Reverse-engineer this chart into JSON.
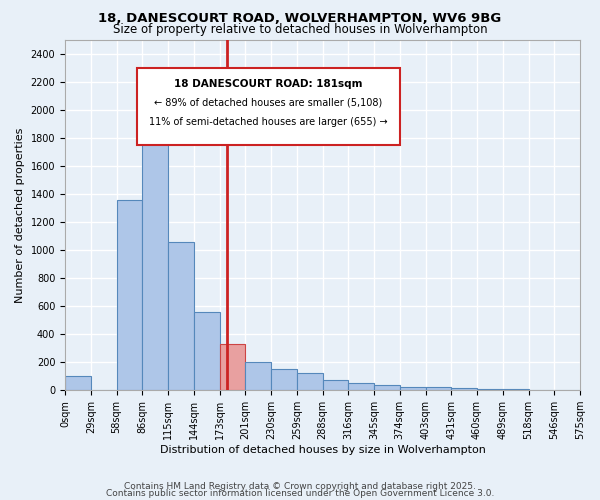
{
  "title1": "18, DANESCOURT ROAD, WOLVERHAMPTON, WV6 9BG",
  "title2": "Size of property relative to detached houses in Wolverhampton",
  "xlabel": "Distribution of detached houses by size in Wolverhampton",
  "ylabel": "Number of detached properties",
  "footer1": "Contains HM Land Registry data © Crown copyright and database right 2025.",
  "footer2": "Contains public sector information licensed under the Open Government Licence 3.0.",
  "bin_labels": [
    "0sqm",
    "29sqm",
    "58sqm",
    "86sqm",
    "115sqm",
    "144sqm",
    "173sqm",
    "201sqm",
    "230sqm",
    "259sqm",
    "288sqm",
    "316sqm",
    "345sqm",
    "374sqm",
    "403sqm",
    "431sqm",
    "460sqm",
    "489sqm",
    "518sqm",
    "546sqm",
    "575sqm"
  ],
  "bar_values": [
    100,
    0,
    1360,
    1900,
    1060,
    560,
    330,
    200,
    150,
    120,
    70,
    50,
    35,
    25,
    20,
    15,
    10,
    8,
    5,
    3
  ],
  "bar_color": "#aec6e8",
  "bar_edge_color": "#5588bb",
  "highlight_bin": 6,
  "highlight_color": "#e8a0a0",
  "highlight_edge_color": "#cc4444",
  "vline_color": "#cc2222",
  "annotation_title": "18 DANESCOURT ROAD: 181sqm",
  "annotation_line1": "← 89% of detached houses are smaller (5,108)",
  "annotation_line2": "11% of semi-detached houses are larger (655) →",
  "annotation_box_color": "#ffffff",
  "annotation_border_color": "#cc2222",
  "ylim": [
    0,
    2500
  ],
  "yticks": [
    0,
    200,
    400,
    600,
    800,
    1000,
    1200,
    1400,
    1600,
    1800,
    2000,
    2200,
    2400
  ],
  "bg_color": "#e8f0f8",
  "grid_color": "#ffffff"
}
